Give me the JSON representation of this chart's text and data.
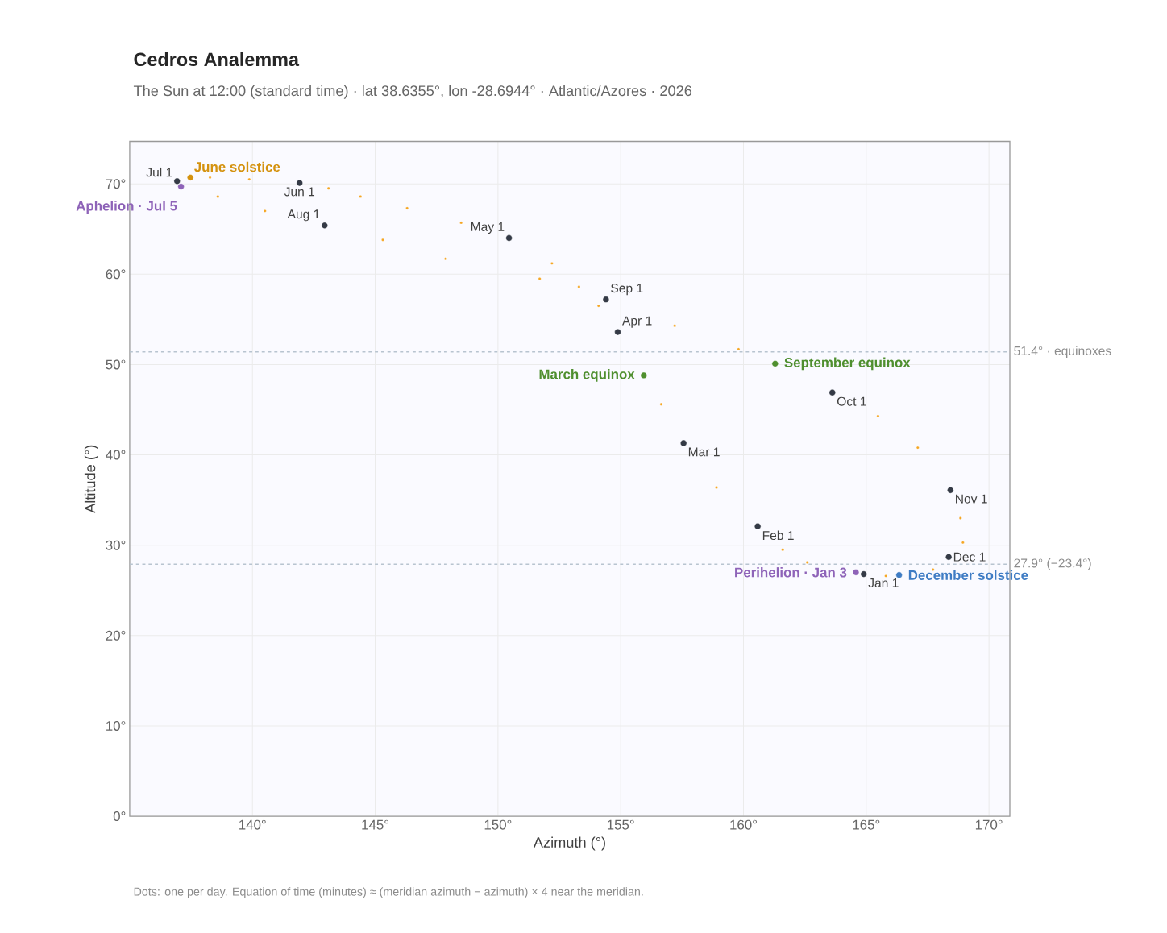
{
  "chart_data": {
    "type": "scatter",
    "title": "Cedros Analemma",
    "subtitle": "The Sun at 12:00 (standard time) · lat 38.6355°, lon -28.6944° · Atlantic/Azores · 2026",
    "xlabel": "Azimuth (°)",
    "ylabel": "Altitude (°)",
    "xlim": [
      135,
      170.85
    ],
    "ylim": [
      0,
      74.7
    ],
    "xticks": [
      {
        "value": 140,
        "label": "140°"
      },
      {
        "value": 145,
        "label": "145°"
      },
      {
        "value": 150,
        "label": "150°"
      },
      {
        "value": 155,
        "label": "155°"
      },
      {
        "value": 160,
        "label": "160°"
      },
      {
        "value": 165,
        "label": "165°"
      },
      {
        "value": 170,
        "label": "170°"
      }
    ],
    "yticks": [
      {
        "value": 0,
        "label": "0°"
      },
      {
        "value": 10,
        "label": "10°"
      },
      {
        "value": 20,
        "label": "20°"
      },
      {
        "value": 30,
        "label": "30°"
      },
      {
        "value": 40,
        "label": "40°"
      },
      {
        "value": 50,
        "label": "50°"
      },
      {
        "value": 60,
        "label": "60°"
      },
      {
        "value": 70,
        "label": "70°"
      }
    ],
    "grid": true,
    "series": [
      {
        "color": "#f5a623",
        "x": [
          162.6,
          161.6,
          158.9,
          156.65,
          154.1,
          153.3,
          152.2,
          148.5,
          146.3,
          144.4,
          143.1,
          139.87,
          138.27,
          138.59,
          140.51,
          145.31,
          147.87,
          151.7,
          157.2,
          159.8,
          165.48,
          167.1,
          168.84,
          168.94,
          167.72,
          165.8
        ],
        "values": [
          28.1,
          29.5,
          36.4,
          45.6,
          56.5,
          58.6,
          61.2,
          65.7,
          67.3,
          68.6,
          69.5,
          70.5,
          70.7,
          68.6,
          67.0,
          63.8,
          61.7,
          59.5,
          54.3,
          51.7,
          44.3,
          40.8,
          33.0,
          30.3,
          27.3,
          26.6
        ]
      },
      {
        "color": "#343a46",
        "x": [
          164.9,
          160.58,
          157.56,
          154.88,
          150.45,
          141.92,
          136.93,
          142.94,
          154.4,
          163.62,
          168.43,
          168.36
        ],
        "values": [
          26.8,
          32.1,
          41.3,
          53.6,
          64.0,
          70.1,
          70.3,
          65.4,
          57.2,
          46.9,
          36.1,
          28.7
        ]
      },
      {
        "name": "June solstice",
        "color": "#d4920f",
        "x": [
          137.47
        ],
        "values": [
          70.7
        ]
      },
      {
        "name": "Aphelion · Jul 5",
        "color": "#8e63b8",
        "x": [
          137.09
        ],
        "values": [
          69.7
        ]
      },
      {
        "name": "March equinox",
        "color": "#4f8f2f",
        "x": [
          155.94
        ],
        "values": [
          48.8
        ]
      },
      {
        "name": "September equinox",
        "color": "#4f8f2f",
        "x": [
          161.29
        ],
        "values": [
          50.1
        ]
      },
      {
        "name": "Perihelion · Jan 3",
        "color": "#8e63b8",
        "x": [
          164.58
        ],
        "values": [
          27.0
        ]
      },
      {
        "name": "December solstice",
        "color": "#3f7cc4",
        "x": [
          166.34
        ],
        "values": [
          26.7
        ]
      }
    ],
    "ref_lines": [
      {
        "axis": "y",
        "value": 51.4,
        "label": "51.4° · equinoxes",
        "color": "#b8c4d0",
        "line_style": "dashed"
      },
      {
        "axis": "y",
        "value": 27.9,
        "label": "27.9° (−23.4°)",
        "color": "#b8c4d0",
        "line_style": "dashed"
      }
    ],
    "annotations": [
      {
        "text": "Jan 1",
        "x": 164.9,
        "y": 26.8
      },
      {
        "text": "Feb 1",
        "x": 160.58,
        "y": 32.1
      },
      {
        "text": "Mar 1",
        "x": 157.56,
        "y": 41.3
      },
      {
        "text": "Apr 1",
        "x": 154.88,
        "y": 53.6
      },
      {
        "text": "May 1",
        "x": 150.45,
        "y": 64.0
      },
      {
        "text": "Jun 1",
        "x": 141.92,
        "y": 70.1
      },
      {
        "text": "Jul 1",
        "x": 136.93,
        "y": 70.3
      },
      {
        "text": "Aug 1",
        "x": 142.94,
        "y": 65.4
      },
      {
        "text": "Sep 1",
        "x": 154.4,
        "y": 57.2
      },
      {
        "text": "Oct 1",
        "x": 163.62,
        "y": 46.9
      },
      {
        "text": "Nov 1",
        "x": 168.43,
        "y": 36.1
      },
      {
        "text": "Dec 1",
        "x": 168.36,
        "y": 28.7
      },
      "Dots: one per day. Equation of time (minutes) ≈ (meridian azimuth − azimuth) × 4 near the meridian."
    ]
  }
}
